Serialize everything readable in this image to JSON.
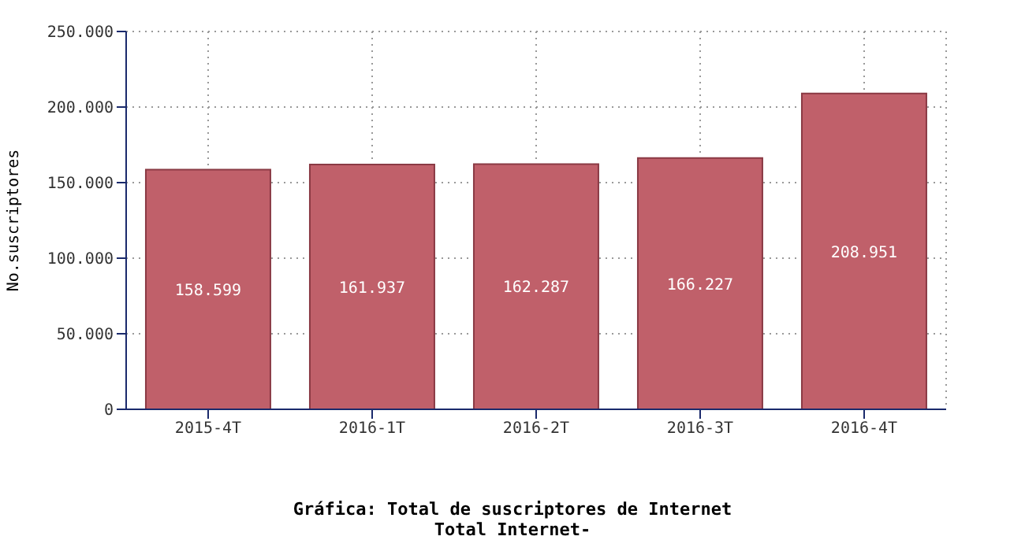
{
  "chart_data": {
    "type": "bar",
    "title": "Gráfica: Total de suscriptores de Internet",
    "subtitle": "Total Internet-",
    "ylabel": "No.suscriptores",
    "categories": [
      "2015-4T",
      "2016-1T",
      "2016-2T",
      "2016-3T",
      "2016-4T"
    ],
    "values": [
      158599,
      161937,
      162287,
      166227,
      208951
    ],
    "value_labels": [
      "158.599",
      "161.937",
      "162.287",
      "166.227",
      "208.951"
    ],
    "color": "#c0606a",
    "ylim": [
      0,
      250000
    ],
    "yticks": [
      {
        "value": 0,
        "label": "0"
      },
      {
        "value": 50000,
        "label": "50.000"
      },
      {
        "value": 100000,
        "label": "100.000"
      },
      {
        "value": 150000,
        "label": "150.000"
      },
      {
        "value": 200000,
        "label": "200.000"
      },
      {
        "value": 250000,
        "label": "250.000"
      }
    ],
    "grid": true
  }
}
